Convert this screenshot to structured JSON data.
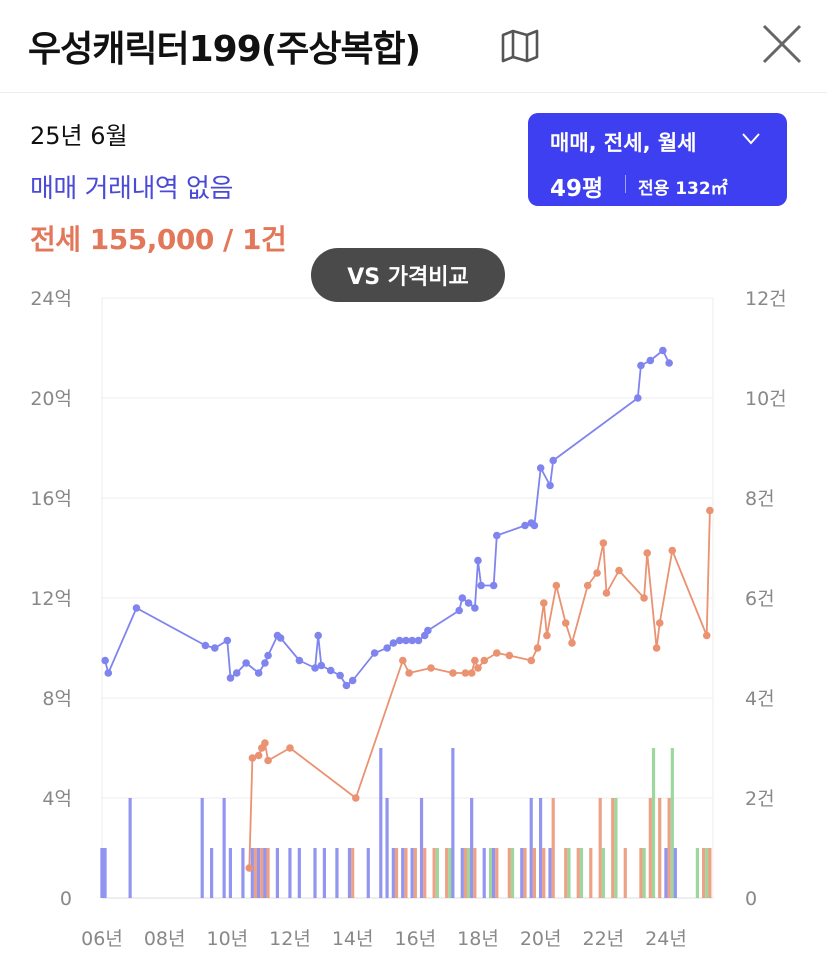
{
  "header": {
    "title": "우성캐릭터199(주상복합)",
    "map_icon": "map-icon",
    "close_icon": "close-icon"
  },
  "summary": {
    "date": "25년 6월",
    "sale_text": "매매 거래내역 없음",
    "jeonse_text": "전세 155,000 / 1건"
  },
  "filter": {
    "label": "매매, 전세, 월세",
    "pyeong": "49평",
    "area": "전용 132㎡"
  },
  "vs_button": {
    "label": "VS 가격비교"
  },
  "colors": {
    "sale": "#7f84ee",
    "jeonse": "#ea9271",
    "monthly": "#8cd08c",
    "accent": "#3d3ff0"
  },
  "chart_data": {
    "type": "line",
    "title": "",
    "xlabel": "",
    "ylabel": "",
    "x_ticks": [
      "06년",
      "08년",
      "10년",
      "12년",
      "14년",
      "16년",
      "18년",
      "20년",
      "22년",
      "24년"
    ],
    "y_left_ticks": [
      "0",
      "4억",
      "8억",
      "12억",
      "16억",
      "20억",
      "24억"
    ],
    "y_right_ticks": [
      "0",
      "2건",
      "4건",
      "6건",
      "8건",
      "10건",
      "12건"
    ],
    "y_left_range": [
      0,
      24
    ],
    "y_right_range": [
      0,
      12
    ],
    "x_range": [
      2006.0,
      2025.5
    ],
    "grid": true,
    "series": [
      {
        "type": "line",
        "points": [
          [
            2006.1,
            9.5
          ],
          [
            2006.2,
            9.0
          ],
          [
            2007.1,
            11.6
          ],
          [
            2009.3,
            10.1
          ],
          [
            2009.6,
            10.0
          ],
          [
            2010.0,
            10.3
          ],
          [
            2010.1,
            8.8
          ],
          [
            2010.3,
            9.0
          ],
          [
            2010.6,
            9.4
          ],
          [
            2011.0,
            9.0
          ],
          [
            2011.2,
            9.4
          ],
          [
            2011.3,
            9.7
          ],
          [
            2011.6,
            10.5
          ],
          [
            2011.7,
            10.4
          ],
          [
            2012.3,
            9.5
          ],
          [
            2012.8,
            9.2
          ],
          [
            2012.9,
            10.5
          ],
          [
            2013.0,
            9.3
          ],
          [
            2013.3,
            9.1
          ],
          [
            2013.6,
            8.9
          ],
          [
            2013.8,
            8.5
          ],
          [
            2014.0,
            8.7
          ],
          [
            2014.7,
            9.8
          ],
          [
            2015.1,
            10.0
          ],
          [
            2015.3,
            10.2
          ],
          [
            2015.5,
            10.3
          ],
          [
            2015.7,
            10.3
          ],
          [
            2015.9,
            10.3
          ],
          [
            2016.1,
            10.3
          ],
          [
            2016.3,
            10.5
          ],
          [
            2016.4,
            10.7
          ],
          [
            2017.4,
            11.5
          ],
          [
            2017.5,
            12.0
          ],
          [
            2017.7,
            11.8
          ],
          [
            2017.9,
            11.6
          ],
          [
            2018.0,
            13.5
          ],
          [
            2018.1,
            12.5
          ],
          [
            2018.5,
            12.5
          ],
          [
            2018.6,
            14.5
          ],
          [
            2019.5,
            14.9
          ],
          [
            2019.7,
            15.0
          ],
          [
            2019.8,
            14.9
          ],
          [
            2020.0,
            17.2
          ],
          [
            2020.3,
            16.5
          ],
          [
            2020.4,
            17.5
          ],
          [
            2023.1,
            20.0
          ],
          [
            2023.2,
            21.3
          ],
          [
            2023.5,
            21.5
          ],
          [
            2023.9,
            21.9
          ],
          [
            2024.1,
            21.4
          ]
        ]
      },
      {
        "type": "line",
        "points": [
          [
            2010.7,
            1.2
          ],
          [
            2010.8,
            5.6
          ],
          [
            2011.0,
            5.7
          ],
          [
            2011.1,
            6.0
          ],
          [
            2011.2,
            6.2
          ],
          [
            2011.3,
            5.5
          ],
          [
            2012.0,
            6.0
          ],
          [
            2014.1,
            4.0
          ],
          [
            2015.6,
            9.5
          ],
          [
            2015.8,
            9.0
          ],
          [
            2016.5,
            9.2
          ],
          [
            2017.2,
            9.0
          ],
          [
            2017.6,
            9.0
          ],
          [
            2017.8,
            9.0
          ],
          [
            2017.9,
            9.5
          ],
          [
            2018.0,
            9.2
          ],
          [
            2018.2,
            9.5
          ],
          [
            2018.6,
            9.8
          ],
          [
            2019.0,
            9.7
          ],
          [
            2019.7,
            9.5
          ],
          [
            2019.9,
            10.0
          ],
          [
            2020.1,
            11.8
          ],
          [
            2020.2,
            10.5
          ],
          [
            2020.5,
            12.5
          ],
          [
            2020.8,
            11.0
          ],
          [
            2021.0,
            10.2
          ],
          [
            2021.5,
            12.5
          ],
          [
            2021.8,
            13.0
          ],
          [
            2022.0,
            14.2
          ],
          [
            2022.1,
            12.2
          ],
          [
            2022.5,
            13.1
          ],
          [
            2023.3,
            12.0
          ],
          [
            2023.4,
            13.8
          ],
          [
            2023.7,
            10.0
          ],
          [
            2023.8,
            11.0
          ],
          [
            2024.2,
            13.9
          ],
          [
            2025.3,
            10.5
          ],
          [
            2025.4,
            15.5
          ]
        ]
      }
    ],
    "volume_bars": [
      {
        "x": 2006.1,
        "sale": 1
      },
      {
        "x": 2006.2,
        "sale": 1
      },
      {
        "x": 2007.0,
        "sale": 2
      },
      {
        "x": 2009.3,
        "sale": 2
      },
      {
        "x": 2009.6,
        "sale": 1
      },
      {
        "x": 2010.0,
        "sale": 2
      },
      {
        "x": 2010.2,
        "sale": 1
      },
      {
        "x": 2010.6,
        "sale": 1
      },
      {
        "x": 2010.9,
        "sale": 1,
        "jeonse": 1
      },
      {
        "x": 2011.1,
        "sale": 1,
        "jeonse": 1
      },
      {
        "x": 2011.3,
        "sale": 1,
        "jeonse": 1
      },
      {
        "x": 2011.7,
        "sale": 1
      },
      {
        "x": 2012.1,
        "sale": 1
      },
      {
        "x": 2012.4,
        "sale": 1
      },
      {
        "x": 2012.9,
        "sale": 1
      },
      {
        "x": 2013.2,
        "sale": 1
      },
      {
        "x": 2013.6,
        "sale": 1
      },
      {
        "x": 2014.0,
        "sale": 1,
        "jeonse": 1
      },
      {
        "x": 2014.6,
        "sale": 1
      },
      {
        "x": 2015.0,
        "sale": 3
      },
      {
        "x": 2015.2,
        "sale": 2
      },
      {
        "x": 2015.4,
        "sale": 1,
        "jeonse": 1
      },
      {
        "x": 2015.7,
        "sale": 1,
        "jeonse": 1
      },
      {
        "x": 2016.0,
        "sale": 1,
        "jeonse": 1
      },
      {
        "x": 2016.3,
        "sale": 2,
        "jeonse": 1
      },
      {
        "x": 2016.6,
        "jeonse": 1,
        "monthly": 1
      },
      {
        "x": 2017.0,
        "jeonse": 1,
        "monthly": 1
      },
      {
        "x": 2017.3,
        "sale": 3
      },
      {
        "x": 2017.6,
        "sale": 1,
        "jeonse": 1,
        "monthly": 1
      },
      {
        "x": 2017.9,
        "sale": 2,
        "jeonse": 1
      },
      {
        "x": 2018.3,
        "sale": 1,
        "monthly": 1
      },
      {
        "x": 2018.6,
        "sale": 1,
        "jeonse": 1
      },
      {
        "x": 2019.0,
        "jeonse": 1,
        "monthly": 1
      },
      {
        "x": 2019.5,
        "sale": 1,
        "jeonse": 1
      },
      {
        "x": 2019.8,
        "sale": 2,
        "jeonse": 1
      },
      {
        "x": 2020.1,
        "sale": 2,
        "jeonse": 1
      },
      {
        "x": 2020.4,
        "sale": 1,
        "jeonse": 2
      },
      {
        "x": 2020.8,
        "jeonse": 1,
        "monthly": 1
      },
      {
        "x": 2021.2,
        "jeonse": 1,
        "monthly": 1
      },
      {
        "x": 2021.6,
        "jeonse": 1
      },
      {
        "x": 2021.9,
        "jeonse": 2,
        "monthly": 1
      },
      {
        "x": 2022.3,
        "jeonse": 2,
        "monthly": 2
      },
      {
        "x": 2022.7,
        "jeonse": 1
      },
      {
        "x": 2023.2,
        "jeonse": 1,
        "monthly": 1
      },
      {
        "x": 2023.5,
        "jeonse": 2,
        "monthly": 3
      },
      {
        "x": 2023.8,
        "jeonse": 2
      },
      {
        "x": 2024.1,
        "sale": 1,
        "jeonse": 2,
        "monthly": 3
      },
      {
        "x": 2024.4,
        "sale": 1
      },
      {
        "x": 2024.9,
        "monthly": 1
      },
      {
        "x": 2025.2,
        "jeonse": 1,
        "monthly": 1
      },
      {
        "x": 2025.4,
        "jeonse": 1
      }
    ]
  }
}
